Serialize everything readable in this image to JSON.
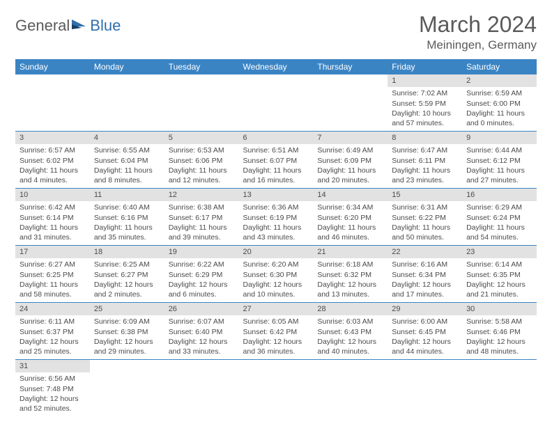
{
  "logo": {
    "part1": "General",
    "part2": "Blue"
  },
  "title": "March 2024",
  "location": "Meiningen, Germany",
  "colors": {
    "header_bg": "#3b84c4",
    "header_text": "#ffffff",
    "daynum_bg": "#e2e2e2",
    "cell_border": "#3b84c4",
    "body_text": "#4a4a4a",
    "title_text": "#5a5a5a",
    "logo_blue": "#2f6fa8"
  },
  "weekdays": [
    "Sunday",
    "Monday",
    "Tuesday",
    "Wednesday",
    "Thursday",
    "Friday",
    "Saturday"
  ],
  "weeks": [
    [
      {
        "day": "",
        "sunrise": "",
        "sunset": "",
        "daylight": ""
      },
      {
        "day": "",
        "sunrise": "",
        "sunset": "",
        "daylight": ""
      },
      {
        "day": "",
        "sunrise": "",
        "sunset": "",
        "daylight": ""
      },
      {
        "day": "",
        "sunrise": "",
        "sunset": "",
        "daylight": ""
      },
      {
        "day": "",
        "sunrise": "",
        "sunset": "",
        "daylight": ""
      },
      {
        "day": "1",
        "sunrise": "Sunrise: 7:02 AM",
        "sunset": "Sunset: 5:59 PM",
        "daylight": "Daylight: 10 hours and 57 minutes."
      },
      {
        "day": "2",
        "sunrise": "Sunrise: 6:59 AM",
        "sunset": "Sunset: 6:00 PM",
        "daylight": "Daylight: 11 hours and 0 minutes."
      }
    ],
    [
      {
        "day": "3",
        "sunrise": "Sunrise: 6:57 AM",
        "sunset": "Sunset: 6:02 PM",
        "daylight": "Daylight: 11 hours and 4 minutes."
      },
      {
        "day": "4",
        "sunrise": "Sunrise: 6:55 AM",
        "sunset": "Sunset: 6:04 PM",
        "daylight": "Daylight: 11 hours and 8 minutes."
      },
      {
        "day": "5",
        "sunrise": "Sunrise: 6:53 AM",
        "sunset": "Sunset: 6:06 PM",
        "daylight": "Daylight: 11 hours and 12 minutes."
      },
      {
        "day": "6",
        "sunrise": "Sunrise: 6:51 AM",
        "sunset": "Sunset: 6:07 PM",
        "daylight": "Daylight: 11 hours and 16 minutes."
      },
      {
        "day": "7",
        "sunrise": "Sunrise: 6:49 AM",
        "sunset": "Sunset: 6:09 PM",
        "daylight": "Daylight: 11 hours and 20 minutes."
      },
      {
        "day": "8",
        "sunrise": "Sunrise: 6:47 AM",
        "sunset": "Sunset: 6:11 PM",
        "daylight": "Daylight: 11 hours and 23 minutes."
      },
      {
        "day": "9",
        "sunrise": "Sunrise: 6:44 AM",
        "sunset": "Sunset: 6:12 PM",
        "daylight": "Daylight: 11 hours and 27 minutes."
      }
    ],
    [
      {
        "day": "10",
        "sunrise": "Sunrise: 6:42 AM",
        "sunset": "Sunset: 6:14 PM",
        "daylight": "Daylight: 11 hours and 31 minutes."
      },
      {
        "day": "11",
        "sunrise": "Sunrise: 6:40 AM",
        "sunset": "Sunset: 6:16 PM",
        "daylight": "Daylight: 11 hours and 35 minutes."
      },
      {
        "day": "12",
        "sunrise": "Sunrise: 6:38 AM",
        "sunset": "Sunset: 6:17 PM",
        "daylight": "Daylight: 11 hours and 39 minutes."
      },
      {
        "day": "13",
        "sunrise": "Sunrise: 6:36 AM",
        "sunset": "Sunset: 6:19 PM",
        "daylight": "Daylight: 11 hours and 43 minutes."
      },
      {
        "day": "14",
        "sunrise": "Sunrise: 6:34 AM",
        "sunset": "Sunset: 6:20 PM",
        "daylight": "Daylight: 11 hours and 46 minutes."
      },
      {
        "day": "15",
        "sunrise": "Sunrise: 6:31 AM",
        "sunset": "Sunset: 6:22 PM",
        "daylight": "Daylight: 11 hours and 50 minutes."
      },
      {
        "day": "16",
        "sunrise": "Sunrise: 6:29 AM",
        "sunset": "Sunset: 6:24 PM",
        "daylight": "Daylight: 11 hours and 54 minutes."
      }
    ],
    [
      {
        "day": "17",
        "sunrise": "Sunrise: 6:27 AM",
        "sunset": "Sunset: 6:25 PM",
        "daylight": "Daylight: 11 hours and 58 minutes."
      },
      {
        "day": "18",
        "sunrise": "Sunrise: 6:25 AM",
        "sunset": "Sunset: 6:27 PM",
        "daylight": "Daylight: 12 hours and 2 minutes."
      },
      {
        "day": "19",
        "sunrise": "Sunrise: 6:22 AM",
        "sunset": "Sunset: 6:29 PM",
        "daylight": "Daylight: 12 hours and 6 minutes."
      },
      {
        "day": "20",
        "sunrise": "Sunrise: 6:20 AM",
        "sunset": "Sunset: 6:30 PM",
        "daylight": "Daylight: 12 hours and 10 minutes."
      },
      {
        "day": "21",
        "sunrise": "Sunrise: 6:18 AM",
        "sunset": "Sunset: 6:32 PM",
        "daylight": "Daylight: 12 hours and 13 minutes."
      },
      {
        "day": "22",
        "sunrise": "Sunrise: 6:16 AM",
        "sunset": "Sunset: 6:34 PM",
        "daylight": "Daylight: 12 hours and 17 minutes."
      },
      {
        "day": "23",
        "sunrise": "Sunrise: 6:14 AM",
        "sunset": "Sunset: 6:35 PM",
        "daylight": "Daylight: 12 hours and 21 minutes."
      }
    ],
    [
      {
        "day": "24",
        "sunrise": "Sunrise: 6:11 AM",
        "sunset": "Sunset: 6:37 PM",
        "daylight": "Daylight: 12 hours and 25 minutes."
      },
      {
        "day": "25",
        "sunrise": "Sunrise: 6:09 AM",
        "sunset": "Sunset: 6:38 PM",
        "daylight": "Daylight: 12 hours and 29 minutes."
      },
      {
        "day": "26",
        "sunrise": "Sunrise: 6:07 AM",
        "sunset": "Sunset: 6:40 PM",
        "daylight": "Daylight: 12 hours and 33 minutes."
      },
      {
        "day": "27",
        "sunrise": "Sunrise: 6:05 AM",
        "sunset": "Sunset: 6:42 PM",
        "daylight": "Daylight: 12 hours and 36 minutes."
      },
      {
        "day": "28",
        "sunrise": "Sunrise: 6:03 AM",
        "sunset": "Sunset: 6:43 PM",
        "daylight": "Daylight: 12 hours and 40 minutes."
      },
      {
        "day": "29",
        "sunrise": "Sunrise: 6:00 AM",
        "sunset": "Sunset: 6:45 PM",
        "daylight": "Daylight: 12 hours and 44 minutes."
      },
      {
        "day": "30",
        "sunrise": "Sunrise: 5:58 AM",
        "sunset": "Sunset: 6:46 PM",
        "daylight": "Daylight: 12 hours and 48 minutes."
      }
    ],
    [
      {
        "day": "31",
        "sunrise": "Sunrise: 6:56 AM",
        "sunset": "Sunset: 7:48 PM",
        "daylight": "Daylight: 12 hours and 52 minutes."
      },
      {
        "day": "",
        "sunrise": "",
        "sunset": "",
        "daylight": ""
      },
      {
        "day": "",
        "sunrise": "",
        "sunset": "",
        "daylight": ""
      },
      {
        "day": "",
        "sunrise": "",
        "sunset": "",
        "daylight": ""
      },
      {
        "day": "",
        "sunrise": "",
        "sunset": "",
        "daylight": ""
      },
      {
        "day": "",
        "sunrise": "",
        "sunset": "",
        "daylight": ""
      },
      {
        "day": "",
        "sunrise": "",
        "sunset": "",
        "daylight": ""
      }
    ]
  ]
}
